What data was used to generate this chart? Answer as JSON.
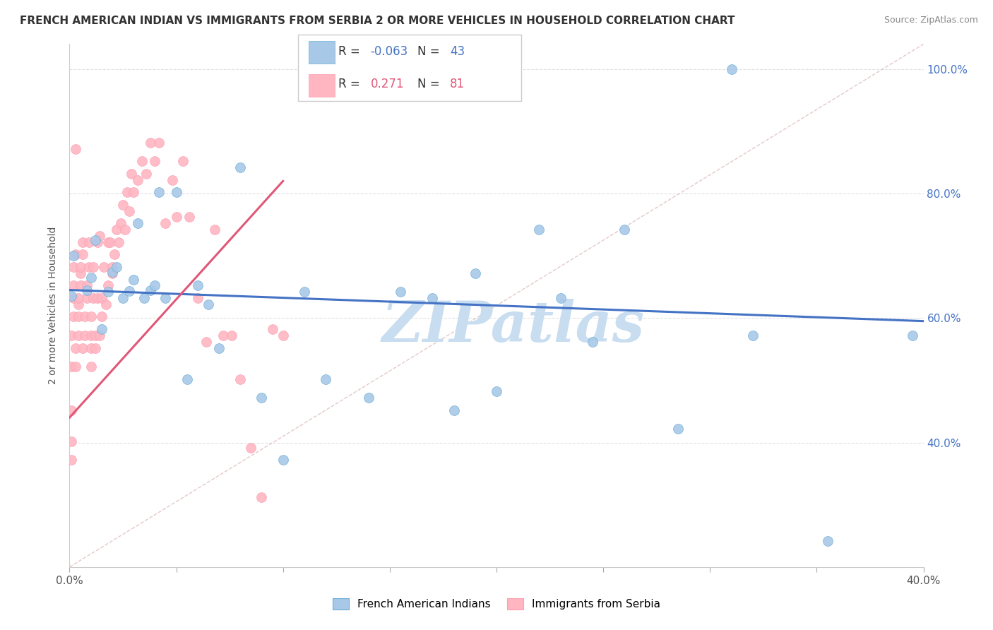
{
  "title": "FRENCH AMERICAN INDIAN VS IMMIGRANTS FROM SERBIA 2 OR MORE VEHICLES IN HOUSEHOLD CORRELATION CHART",
  "source": "Source: ZipAtlas.com",
  "ylabel_left": "2 or more Vehicles in Household",
  "legend": {
    "blue_R": "-0.063",
    "blue_N": "43",
    "pink_R": "0.271",
    "pink_N": "81"
  },
  "blue_scatter_x": [
    0.001,
    0.002,
    0.008,
    0.01,
    0.012,
    0.015,
    0.018,
    0.02,
    0.022,
    0.025,
    0.028,
    0.03,
    0.032,
    0.035,
    0.038,
    0.04,
    0.042,
    0.045,
    0.05,
    0.055,
    0.06,
    0.065,
    0.07,
    0.08,
    0.09,
    0.1,
    0.11,
    0.12,
    0.14,
    0.155,
    0.17,
    0.18,
    0.19,
    0.2,
    0.22,
    0.23,
    0.245,
    0.26,
    0.285,
    0.31,
    0.32,
    0.355,
    0.395
  ],
  "blue_scatter_y": [
    0.635,
    0.7,
    0.645,
    0.665,
    0.725,
    0.582,
    0.642,
    0.674,
    0.682,
    0.632,
    0.643,
    0.662,
    0.752,
    0.632,
    0.644,
    0.652,
    0.802,
    0.632,
    0.802,
    0.502,
    0.652,
    0.622,
    0.552,
    0.842,
    0.472,
    0.372,
    0.642,
    0.502,
    0.472,
    0.642,
    0.632,
    0.452,
    0.672,
    0.482,
    0.742,
    0.632,
    0.562,
    0.742,
    0.422,
    1.0,
    0.572,
    0.242,
    0.572
  ],
  "pink_scatter_x": [
    0.001,
    0.001,
    0.001,
    0.001,
    0.001,
    0.002,
    0.002,
    0.002,
    0.002,
    0.003,
    0.003,
    0.003,
    0.003,
    0.004,
    0.004,
    0.004,
    0.004,
    0.005,
    0.005,
    0.005,
    0.006,
    0.006,
    0.006,
    0.007,
    0.007,
    0.008,
    0.008,
    0.009,
    0.009,
    0.01,
    0.01,
    0.01,
    0.01,
    0.011,
    0.011,
    0.012,
    0.012,
    0.013,
    0.013,
    0.014,
    0.014,
    0.015,
    0.015,
    0.016,
    0.017,
    0.018,
    0.018,
    0.019,
    0.02,
    0.02,
    0.021,
    0.022,
    0.023,
    0.024,
    0.025,
    0.026,
    0.027,
    0.028,
    0.029,
    0.03,
    0.032,
    0.034,
    0.036,
    0.038,
    0.04,
    0.042,
    0.045,
    0.048,
    0.05,
    0.053,
    0.056,
    0.06,
    0.064,
    0.068,
    0.072,
    0.076,
    0.08,
    0.085,
    0.09,
    0.095,
    0.1
  ],
  "pink_scatter_y": [
    0.372,
    0.402,
    0.452,
    0.522,
    0.572,
    0.602,
    0.632,
    0.652,
    0.682,
    0.702,
    0.872,
    0.522,
    0.552,
    0.572,
    0.602,
    0.622,
    0.632,
    0.652,
    0.672,
    0.682,
    0.702,
    0.722,
    0.552,
    0.572,
    0.602,
    0.632,
    0.652,
    0.682,
    0.722,
    0.522,
    0.552,
    0.572,
    0.602,
    0.632,
    0.682,
    0.552,
    0.572,
    0.632,
    0.722,
    0.572,
    0.732,
    0.602,
    0.632,
    0.682,
    0.622,
    0.722,
    0.652,
    0.722,
    0.682,
    0.672,
    0.702,
    0.742,
    0.722,
    0.752,
    0.782,
    0.742,
    0.802,
    0.772,
    0.832,
    0.802,
    0.822,
    0.852,
    0.832,
    0.882,
    0.852,
    0.882,
    0.752,
    0.822,
    0.762,
    0.852,
    0.762,
    0.632,
    0.562,
    0.742,
    0.572,
    0.572,
    0.502,
    0.392,
    0.312,
    0.582,
    0.572
  ],
  "blue_color": "#a8c8e8",
  "blue_edge_color": "#6baed6",
  "pink_color": "#ffb6c1",
  "pink_edge_color": "#fa9fb5",
  "blue_line_color": "#4472c4",
  "pink_line_color": "#e05878",
  "ref_line_color": "#ddbbbb",
  "watermark_text": "ZIPatlas",
  "watermark_color": "#c8ddf0",
  "background_color": "#ffffff",
  "xlim": [
    0.0,
    0.4
  ],
  "ylim": [
    0.2,
    1.04
  ],
  "ytick_vals": [
    0.4,
    0.6,
    0.8,
    1.0
  ],
  "blue_trend_x0": 0.0,
  "blue_trend_x1": 0.4,
  "blue_trend_y0": 0.645,
  "blue_trend_y1": 0.595,
  "pink_trend_x0": 0.0,
  "pink_trend_x1": 0.1,
  "pink_trend_y0": 0.44,
  "pink_trend_y1": 0.82
}
